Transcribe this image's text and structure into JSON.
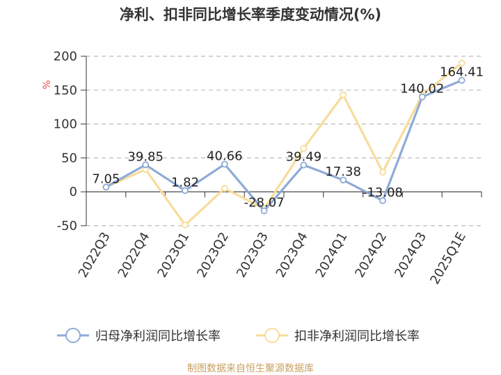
{
  "title": "净利、扣非同比增长率季度变动情况(%)",
  "source": "制图数据来自恒生聚源数据库",
  "chart_data": {
    "type": "line",
    "title": "净利、扣非同比增长率季度变动情况(%)",
    "ylabel": "%",
    "ylim": [
      -50,
      200
    ],
    "yticks": [
      "200",
      "150",
      "100",
      "50",
      "0",
      "-50"
    ],
    "categories": [
      "2022Q3",
      "2022Q4",
      "2023Q1",
      "2023Q2",
      "2023Q3",
      "2023Q4",
      "2024Q1",
      "2024Q2",
      "2024Q3",
      "2025Q1E"
    ],
    "grid": true,
    "legend_position": "bottom",
    "series": [
      {
        "name": "归母净利润同比增长率",
        "color": "#8eaad6",
        "values": [
          7.05,
          39.85,
          1.82,
          40.66,
          -28.07,
          39.49,
          17.38,
          -13.08,
          140.02,
          164.41
        ],
        "labels": [
          "7.05",
          "39.85",
          "1.82",
          "40.66",
          "-28.07",
          "39.49",
          "17.38",
          "-13.08",
          "140.02",
          "164.41"
        ]
      },
      {
        "name": "扣非净利润同比增长率",
        "color": "#f7dc9a",
        "values": [
          7.0,
          33.0,
          -49.0,
          5.0,
          -25.0,
          64.0,
          143.0,
          29.0,
          143.0,
          190.0
        ]
      }
    ]
  }
}
